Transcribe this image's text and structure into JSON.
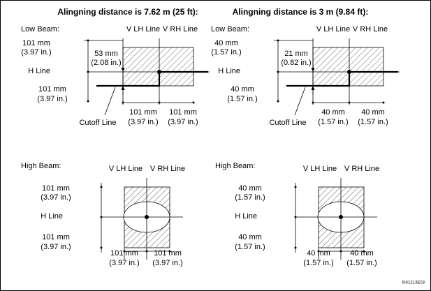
{
  "titles": [
    "Alingning distance is 7.62 m (25 ft):",
    "Alingning distance is 3 m (9.84 ft):"
  ],
  "panels": [
    {
      "kind": "low",
      "beam": "Low Beam:",
      "v_lh": "V LH Line",
      "v_rh": "V RH Line",
      "h_line": "H Line",
      "upper": [
        "101 mm",
        "(3.97 in.)"
      ],
      "lower": [
        "101 mm",
        "(3.97 in.)"
      ],
      "offset": [
        "53 mm",
        "(2.08 in.)"
      ],
      "left": [
        "101 mm",
        "(3.97 in.)"
      ],
      "right": [
        "101 mm",
        "(3.97 in.)"
      ],
      "cutoff": "Cutoff Line"
    },
    {
      "kind": "low",
      "beam": "Low Beam:",
      "v_lh": "V LH Line",
      "v_rh": "V RH Line",
      "h_line": "H Line",
      "upper": [
        "40 mm",
        "(1.57 in.)"
      ],
      "lower": [
        "40 mm",
        "(1.57 in.)"
      ],
      "offset": [
        "21 mm",
        "(0.82 in.)"
      ],
      "left": [
        "40 mm",
        "(1.57 in.)"
      ],
      "right": [
        "40 mm",
        "(1.57 in.)"
      ],
      "cutoff": "Cutoff Line"
    },
    {
      "kind": "high",
      "beam": "High Beam:",
      "v_lh": "V LH Line",
      "v_rh": "V RH Line",
      "h_line": "H Line",
      "upper": [
        "101 mm",
        "(3.97 in.)"
      ],
      "lower": [
        "101 mm",
        "(3.97 in.)"
      ],
      "left": [
        "101 mm",
        "(3.97 in.)"
      ],
      "right": [
        "101 mm",
        "(3.97 in.)"
      ]
    },
    {
      "kind": "high",
      "beam": "High Beam:",
      "v_lh": "V LH Line",
      "v_rh": "V RH Line",
      "h_line": "H Line",
      "upper": [
        "40 mm",
        "(1.57 in.)"
      ],
      "lower": [
        "40 mm",
        "(1.57 in.)"
      ],
      "left": [
        "40 mm",
        "(1.57 in.)"
      ],
      "right": [
        "40 mm",
        "(1.57 in.)"
      ]
    }
  ],
  "figure_id": "I041213E03"
}
